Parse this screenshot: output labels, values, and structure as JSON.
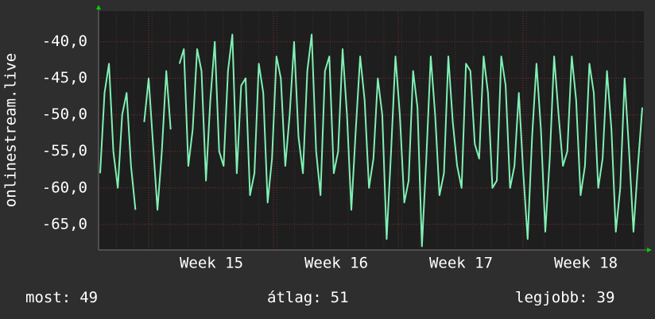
{
  "chart_data": {
    "type": "line",
    "y_label": "onlinestream.live",
    "xticks": [
      "Week 15",
      "Week 16",
      "Week 17",
      "Week 18"
    ],
    "ylim": [
      -68.5,
      -35.8
    ],
    "yticks": [
      {
        "value": -40,
        "label": "-40,0"
      },
      {
        "value": -45,
        "label": "-45,0"
      },
      {
        "value": -50,
        "label": "-50,0"
      },
      {
        "value": -55,
        "label": "-55,0"
      },
      {
        "value": -60,
        "label": "-60,0"
      },
      {
        "value": -65,
        "label": "-65,0"
      }
    ],
    "grid": true,
    "series": [
      {
        "color": "#80f0b4",
        "values": [
          -58,
          -47,
          -43,
          -55,
          -60,
          -50,
          -47,
          -57,
          -63,
          null,
          -51,
          -45,
          -54,
          -63,
          -55,
          -44,
          -52,
          null,
          -43,
          -41,
          -57,
          -52,
          -41,
          -44,
          -59,
          -48,
          -40,
          -55,
          -57,
          -44,
          -39,
          -58,
          -46,
          -45,
          -61,
          -58,
          -43,
          -47,
          -62,
          -56,
          -42,
          -45,
          -57,
          -50,
          -40,
          -53,
          -58,
          -44,
          -39,
          -55,
          -61,
          -44,
          -42,
          -58,
          -55,
          -41,
          -50,
          -63,
          -52,
          -42,
          -48,
          -60,
          -56,
          -45,
          -50,
          -67,
          -55,
          -42,
          -50,
          -62,
          -59,
          -44,
          -49,
          -68,
          -56,
          -42,
          -50,
          -61,
          -58,
          -42,
          -51,
          -57,
          -60,
          -43,
          -44,
          -54,
          -56,
          -42,
          -47,
          -60,
          -59,
          -42,
          -46,
          -60,
          -57,
          -47,
          -58,
          -67,
          -53,
          -43,
          -52,
          -66,
          -56,
          -42,
          -50,
          -57,
          -55,
          -42,
          -48,
          -61,
          -57,
          -43,
          -47,
          -60,
          -56,
          -44,
          -52,
          -66,
          -60,
          -45,
          -55,
          -66,
          -57,
          -49
        ]
      }
    ],
    "stats": [
      {
        "label": "most:",
        "value": 49
      },
      {
        "label": "átlag:",
        "value": 51
      },
      {
        "label": "legjobb:",
        "value": 39
      }
    ]
  }
}
